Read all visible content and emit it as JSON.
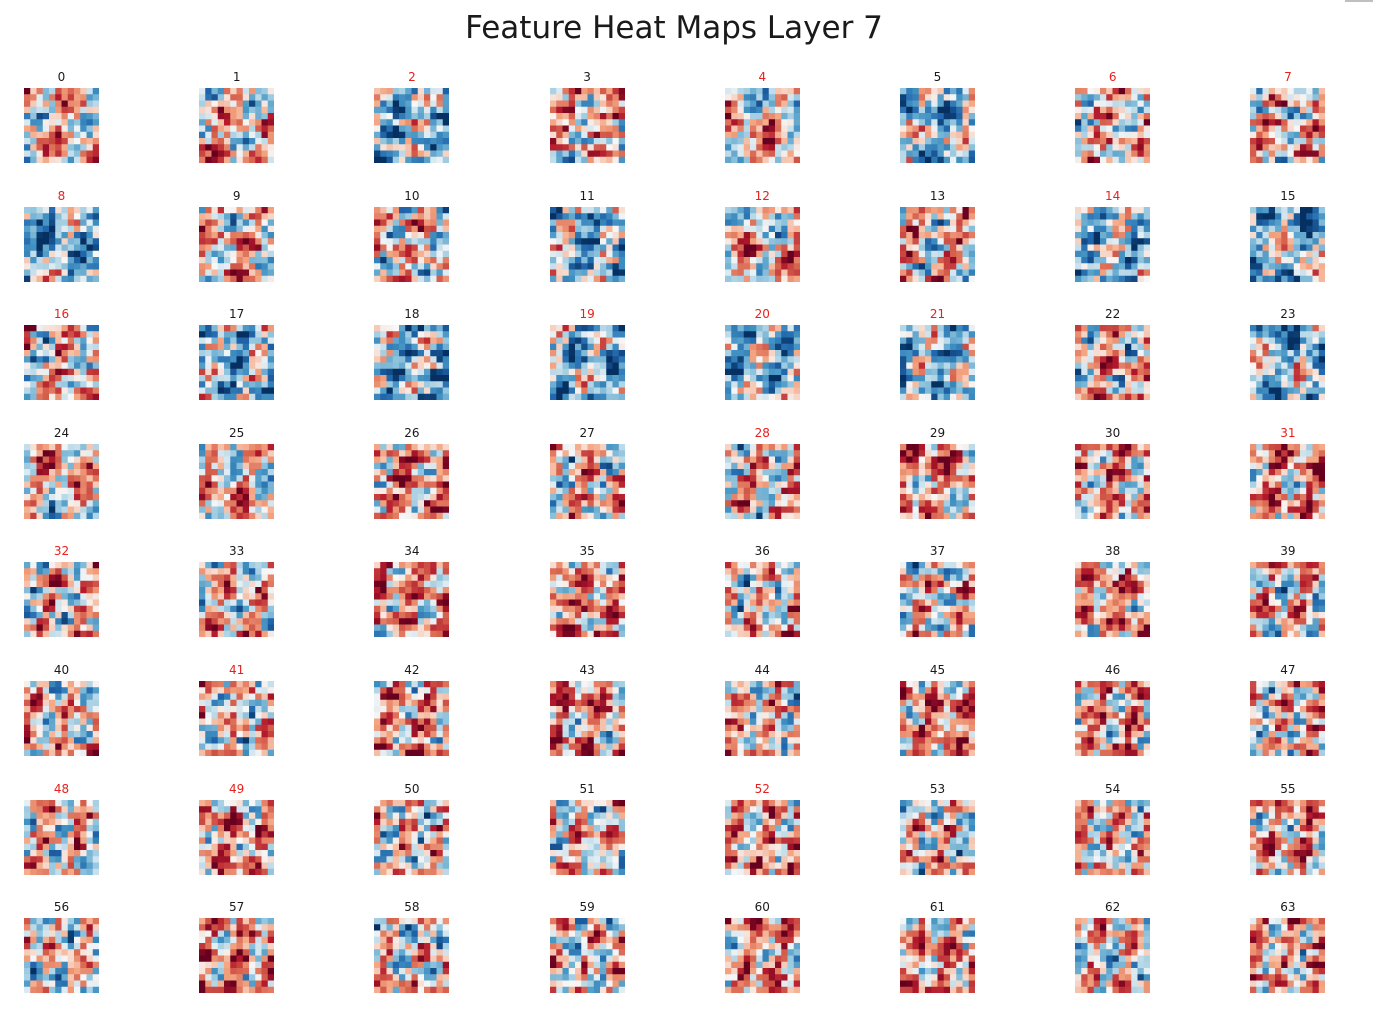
{
  "chart_data": {
    "type": "heatmap",
    "title": "Feature Heat Maps Layer 7",
    "colormap": "RdBu_r",
    "grid_rows": 8,
    "grid_cols": 8,
    "map_resolution": 12,
    "maps": [
      {
        "label": "0",
        "highlight": false,
        "seed": 11
      },
      {
        "label": "1",
        "highlight": false,
        "seed": 23
      },
      {
        "label": "2",
        "highlight": true,
        "seed": 37
      },
      {
        "label": "3",
        "highlight": false,
        "seed": 41
      },
      {
        "label": "4",
        "highlight": true,
        "seed": 53
      },
      {
        "label": "5",
        "highlight": false,
        "seed": 67
      },
      {
        "label": "6",
        "highlight": true,
        "seed": 71
      },
      {
        "label": "7",
        "highlight": true,
        "seed": 83
      },
      {
        "label": "8",
        "highlight": true,
        "seed": 97
      },
      {
        "label": "9",
        "highlight": false,
        "seed": 101
      },
      {
        "label": "10",
        "highlight": false,
        "seed": 113
      },
      {
        "label": "11",
        "highlight": false,
        "seed": 127
      },
      {
        "label": "12",
        "highlight": true,
        "seed": 131
      },
      {
        "label": "13",
        "highlight": false,
        "seed": 149
      },
      {
        "label": "14",
        "highlight": true,
        "seed": 151
      },
      {
        "label": "15",
        "highlight": false,
        "seed": 163
      },
      {
        "label": "16",
        "highlight": true,
        "seed": 173
      },
      {
        "label": "17",
        "highlight": false,
        "seed": 181
      },
      {
        "label": "18",
        "highlight": false,
        "seed": 193
      },
      {
        "label": "19",
        "highlight": true,
        "seed": 199
      },
      {
        "label": "20",
        "highlight": true,
        "seed": 211
      },
      {
        "label": "21",
        "highlight": true,
        "seed": 223
      },
      {
        "label": "22",
        "highlight": false,
        "seed": 233
      },
      {
        "label": "23",
        "highlight": false,
        "seed": 241
      },
      {
        "label": "24",
        "highlight": false,
        "seed": 251
      },
      {
        "label": "25",
        "highlight": false,
        "seed": 263
      },
      {
        "label": "26",
        "highlight": false,
        "seed": 271
      },
      {
        "label": "27",
        "highlight": false,
        "seed": 281
      },
      {
        "label": "28",
        "highlight": true,
        "seed": 293
      },
      {
        "label": "29",
        "highlight": false,
        "seed": 307
      },
      {
        "label": "30",
        "highlight": false,
        "seed": 313
      },
      {
        "label": "31",
        "highlight": true,
        "seed": 331
      },
      {
        "label": "32",
        "highlight": true,
        "seed": 347
      },
      {
        "label": "33",
        "highlight": false,
        "seed": 353
      },
      {
        "label": "34",
        "highlight": false,
        "seed": 367
      },
      {
        "label": "35",
        "highlight": false,
        "seed": 379
      },
      {
        "label": "36",
        "highlight": false,
        "seed": 389
      },
      {
        "label": "37",
        "highlight": false,
        "seed": 401
      },
      {
        "label": "38",
        "highlight": false,
        "seed": 409
      },
      {
        "label": "39",
        "highlight": false,
        "seed": 419
      },
      {
        "label": "40",
        "highlight": false,
        "seed": 431
      },
      {
        "label": "41",
        "highlight": true,
        "seed": 443
      },
      {
        "label": "42",
        "highlight": false,
        "seed": 457
      },
      {
        "label": "43",
        "highlight": false,
        "seed": 463
      },
      {
        "label": "44",
        "highlight": false,
        "seed": 479
      },
      {
        "label": "45",
        "highlight": false,
        "seed": 487
      },
      {
        "label": "46",
        "highlight": false,
        "seed": 499
      },
      {
        "label": "47",
        "highlight": false,
        "seed": 503
      },
      {
        "label": "48",
        "highlight": true,
        "seed": 521
      },
      {
        "label": "49",
        "highlight": true,
        "seed": 541
      },
      {
        "label": "50",
        "highlight": false,
        "seed": 557
      },
      {
        "label": "51",
        "highlight": false,
        "seed": 563
      },
      {
        "label": "52",
        "highlight": true,
        "seed": 577
      },
      {
        "label": "53",
        "highlight": false,
        "seed": 587
      },
      {
        "label": "54",
        "highlight": false,
        "seed": 599
      },
      {
        "label": "55",
        "highlight": false,
        "seed": 607
      },
      {
        "label": "56",
        "highlight": false,
        "seed": 617
      },
      {
        "label": "57",
        "highlight": false,
        "seed": 631
      },
      {
        "label": "58",
        "highlight": false,
        "seed": 641
      },
      {
        "label": "59",
        "highlight": false,
        "seed": 653
      },
      {
        "label": "60",
        "highlight": false,
        "seed": 661
      },
      {
        "label": "61",
        "highlight": false,
        "seed": 673
      },
      {
        "label": "62",
        "highlight": false,
        "seed": 683
      },
      {
        "label": "63",
        "highlight": false,
        "seed": 691
      }
    ]
  },
  "colors": {
    "highlight_label": "#e8211c",
    "normal_label": "#1a1a1a"
  }
}
